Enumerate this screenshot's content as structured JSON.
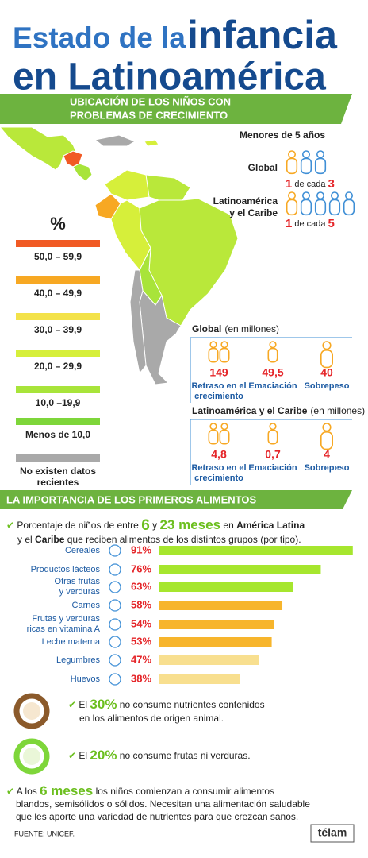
{
  "header": {
    "title_a": "Estado de la",
    "title_b": "infancia",
    "title_c": "en Latinoamérica"
  },
  "map_section": {
    "heading": [
      "UBICACIÓN DE LOS NIÑOS CON",
      "PROBLEMAS DE CRECIMIENTO"
    ],
    "legend": {
      "symbol": "%",
      "items": [
        {
          "label": [
            "50,0 – 59,9"
          ],
          "color": "#f15a24"
        },
        {
          "label": [
            "40,0 – 49,9"
          ],
          "color": "#f7a823"
        },
        {
          "label": [
            "30,0 – 39,9"
          ],
          "color": "#f3e24a"
        },
        {
          "label": [
            "20,0 – 29,9"
          ],
          "color": "#d6ef3a"
        },
        {
          "label": [
            "10,0 –19,9"
          ],
          "color": "#a8e43a"
        },
        {
          "label": [
            "Menos de 10,0"
          ],
          "color": "#7ed63a"
        },
        {
          "label": [
            "No existen datos",
            "recientes"
          ],
          "color": "#a9a9a9"
        }
      ]
    },
    "under5": {
      "title": "Menores de 5 años",
      "global": {
        "label": [
          "Global"
        ],
        "a": "1",
        "text": "de cada",
        "b": "3"
      },
      "latam": {
        "label": [
          "Latinoamérica",
          "y el Caribe"
        ],
        "a": "1",
        "text": "de cada",
        "b": "5"
      }
    },
    "global_millions": {
      "title": "Global",
      "unit": "(en millones)",
      "items": [
        {
          "value": "149",
          "label": [
            "Retraso en el",
            "crecimiento"
          ]
        },
        {
          "value": "49,5",
          "label": [
            "Emaciación"
          ]
        },
        {
          "value": "40",
          "label": [
            "Sobrepeso"
          ]
        }
      ]
    },
    "latam_millions": {
      "title": "Latinoamérica y el Caribe",
      "unit": "(en millones)",
      "items": [
        {
          "value": "4,8",
          "label": [
            "Retraso en el",
            "crecimiento"
          ]
        },
        {
          "value": "0,7",
          "label": [
            "Emaciación"
          ]
        },
        {
          "value": "4",
          "label": [
            "Sobrepeso"
          ]
        }
      ]
    }
  },
  "food_section": {
    "heading": "LA IMPORTANCIA DE LOS PRIMEROS ALIMENTOS",
    "intro": [
      "Porcentaje de niños de entre",
      "6",
      "y",
      "23 meses",
      "en",
      "América Latina",
      "y el",
      "Caribe",
      "que reciben alimentos de los distintos grupos (por tipo)."
    ]
  },
  "chart_data": {
    "type": "bar",
    "categories": [
      [
        "Cereales"
      ],
      [
        "Productos lácteos"
      ],
      [
        "Otras frutas",
        "y verduras"
      ],
      [
        "Carnes"
      ],
      [
        "Frutas y verduras",
        "ricas en vitamina A"
      ],
      [
        "Leche materna"
      ],
      [
        "Legumbres"
      ],
      [
        "Huevos"
      ]
    ],
    "values": [
      91,
      76,
      63,
      58,
      54,
      53,
      47,
      38
    ],
    "value_labels": [
      "91%",
      "76%",
      "63%",
      "58%",
      "54%",
      "53%",
      "47%",
      "38%"
    ],
    "colors": [
      "#a6e62e",
      "#a6e62e",
      "#a6e62e",
      "#f7b52c",
      "#f7b52c",
      "#f7b52c",
      "#f8df8f",
      "#f8df8f"
    ]
  },
  "bullets": [
    {
      "parts": [
        "El",
        "30%",
        "no consume nutrientes contenidos"
      ],
      "line2": "en los alimentos de origen animal."
    },
    {
      "parts": [
        "El",
        "20%",
        "no consume frutas ni verduras."
      ]
    }
  ],
  "closing": {
    "parts": [
      "A los",
      "6 meses",
      "los niños comienzan a consumir alimentos"
    ],
    "lines": [
      "blandos, semisólidos o sólidos. Necesitan una alimentación saludable",
      "que les aporte una variedad de nutrientes para que crezcan sanos."
    ]
  },
  "footer": {
    "source": "FUENTE: UNICEF.",
    "brand": "télam"
  }
}
